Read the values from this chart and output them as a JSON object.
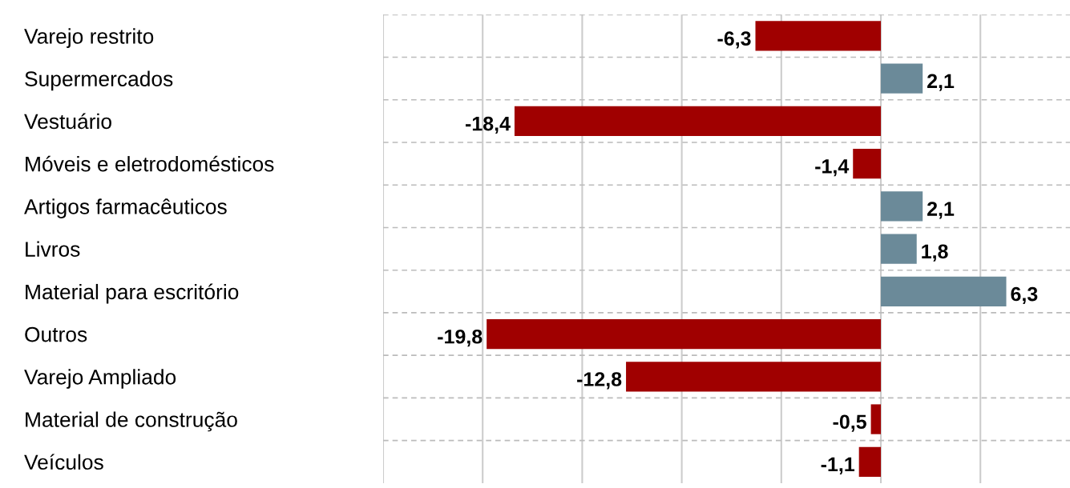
{
  "chart_data": {
    "type": "bar",
    "orientation": "horizontal",
    "categories": [
      "Varejo restrito",
      "Supermercados",
      "Vestuário",
      "Móveis e eletrodomésticos",
      "Artigos farmacêuticos",
      "Livros",
      "Material para escritório",
      "Outros",
      "Varejo Ampliado",
      "Material de construção",
      "Veículos"
    ],
    "values": [
      -6.3,
      2.1,
      -18.4,
      -1.4,
      2.1,
      1.8,
      6.3,
      -19.8,
      -12.8,
      -0.5,
      -1.1
    ],
    "value_labels": [
      "-6,3",
      "2,1",
      "-18,4",
      "-1,4",
      "2,1",
      "1,8",
      "6,3",
      "-19,8",
      "-12,8",
      "-0,5",
      "-1,1"
    ],
    "colors": [
      "#a00000",
      "#6b8a99",
      "#a00000",
      "#a00000",
      "#6b8a99",
      "#6b8a99",
      "#6b8a99",
      "#a00000",
      "#a00000",
      "#a00000",
      "#a00000"
    ],
    "xlim": [
      -25,
      9.5
    ],
    "xticks": [
      {
        "value": -25,
        "label": null
      },
      {
        "value": -20,
        "label": null
      },
      {
        "value": -15,
        "label": null
      },
      {
        "value": -10,
        "label": null
      },
      {
        "value": -5,
        "label": null
      },
      {
        "value": 0,
        "label": null
      },
      {
        "value": 5,
        "label": null
      }
    ],
    "tick_labels": "y",
    "grid": true
  }
}
